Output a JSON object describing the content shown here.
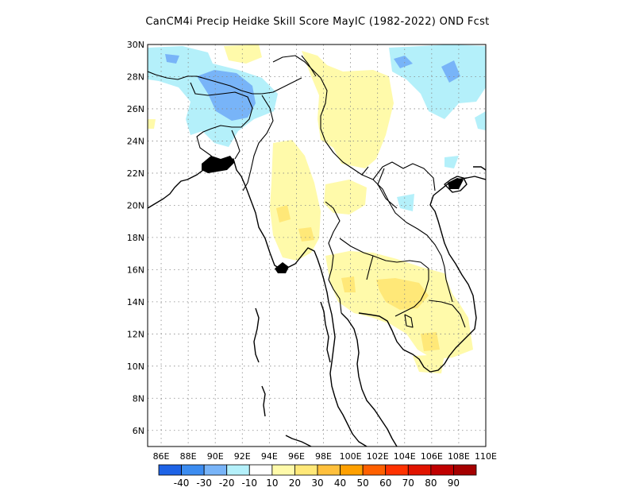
{
  "title": "CanCM4i Precip Heidke Skill Score MayIC (1982-2022) OND Fcst",
  "map": {
    "lon_range": [
      85,
      110
    ],
    "lat_range": [
      5,
      30
    ],
    "lon_ticks": [
      "86E",
      "88E",
      "90E",
      "92E",
      "94E",
      "96E",
      "98E",
      "100E",
      "102E",
      "104E",
      "106E",
      "108E",
      "110E"
    ],
    "lat_ticks": [
      "6N",
      "8N",
      "10N",
      "12N",
      "14N",
      "16N",
      "18N",
      "20N",
      "22N",
      "24N",
      "26N",
      "28N",
      "30N"
    ],
    "grid": "dotted"
  },
  "colorbar": {
    "colors": [
      "#1e63e6",
      "#3c8cf0",
      "#78b4f8",
      "#b4f0fa",
      "#ffffff",
      "#fffaaa",
      "#ffe878",
      "#ffc03c",
      "#ffa000",
      "#ff6000",
      "#ff3200",
      "#e11400",
      "#c00000",
      "#a50000"
    ],
    "labels": [
      "-40",
      "-30",
      "-20",
      "-10",
      "10",
      "20",
      "30",
      "40",
      "50",
      "60",
      "70",
      "80",
      "90"
    ]
  },
  "shading": {
    "light_blue": "#b4f0fa",
    "mid_blue": "#78b4f8",
    "light_yellow": "#fffaaa",
    "yellow": "#ffe878"
  }
}
